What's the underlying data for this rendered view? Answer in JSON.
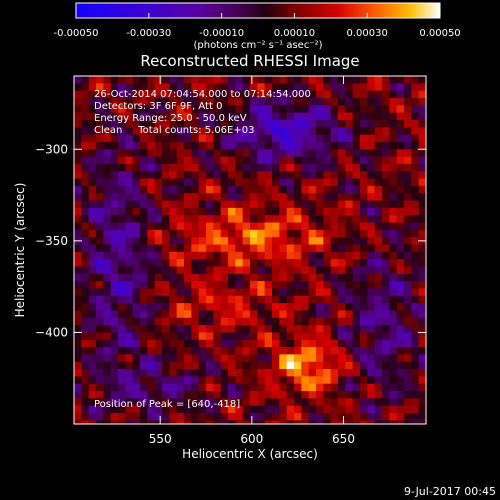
{
  "chart_data": {
    "type": "heatmap",
    "title": "Reconstructed RHESSI Image",
    "xlabel": "Heliocentric X (arcsec)",
    "ylabel": "Heliocentric Y (arcsec)",
    "xlim": [
      503,
      695
    ],
    "ylim": [
      -450,
      -260
    ],
    "x_ticks": [
      550,
      600,
      650
    ],
    "y_ticks": [
      -300,
      -350,
      -400
    ],
    "colorbar": {
      "colormap": "blue-purple-red-orange-yellow-white",
      "ticks": [
        -0.0005,
        -0.0003,
        -0.0001,
        0.0001,
        0.0003,
        0.0005
      ],
      "tick_labels": [
        "-0.00050",
        "-0.00030",
        "-0.00010",
        "0.00010",
        "0.00030",
        "0.00050"
      ],
      "unit_label": "(photons cm⁻² s⁻¹ asec⁻²)",
      "range": [
        -0.0005,
        0.0005
      ]
    },
    "annotations": [
      "26-Oct-2014 07:04:54.000 to 07:14:54.000",
      "Detectors: 3F 6F 9F, Att 0",
      "Energy Range: 25.0 - 50.0 keV",
      "Clean     Total counts: 5.06E+03",
      "Position of Peak = [640,-418]"
    ],
    "peak": {
      "x": 640,
      "y": -418
    }
  },
  "footer": {
    "timestamp": "9-Jul-2017 00:45"
  }
}
